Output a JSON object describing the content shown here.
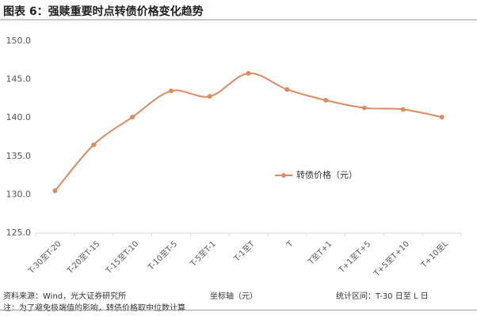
{
  "title": "图表 6：强赎重要时点转债价格变化趋势",
  "footer": {
    "source": "资料来源：Wind，光大证券研究所",
    "note": "注：为了避免极端值的影响，转债价格取中位数计算",
    "axis_caption": "坐标轴（元）",
    "period": "统计区间：T-30 日至 L 日"
  },
  "chart_data": {
    "type": "line",
    "categories": [
      "T-30至T-20",
      "T-20至T-15",
      "T-15至T-10",
      "T-10至T-5",
      "T-5至T-1",
      "T-1至T",
      "T",
      "T至T+1",
      "T+1至T+5",
      "T+5至T+10",
      "T+10至L"
    ],
    "series": [
      {
        "name": "转债价格（元）",
        "values": [
          130.5,
          136.5,
          140.1,
          143.5,
          142.8,
          145.8,
          143.7,
          142.3,
          141.3,
          141.1,
          140.1
        ],
        "color": "#e08a60"
      }
    ],
    "y_ticks": [
      "125.0",
      "130.0",
      "135.0",
      "140.0",
      "145.0",
      "150.0"
    ],
    "ylim": [
      125,
      150
    ],
    "legend_position": "center-right",
    "grid": false,
    "line_style": "smooth"
  }
}
